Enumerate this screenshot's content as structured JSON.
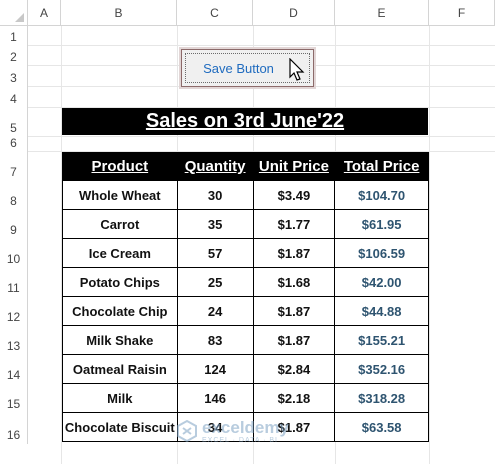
{
  "columns": [
    "A",
    "B",
    "C",
    "D",
    "E",
    "F"
  ],
  "rows": [
    "1",
    "2",
    "3",
    "4",
    "5",
    "6",
    "7",
    "8",
    "9",
    "10",
    "11",
    "12",
    "13",
    "14",
    "15",
    "16"
  ],
  "button": {
    "label": "Save Button"
  },
  "banner": {
    "title": "Sales on 3rd June'22"
  },
  "table": {
    "headers": [
      "Product",
      "Quantity",
      "Unit Price",
      "Total Price"
    ],
    "rows": [
      [
        "Whole Wheat",
        "30",
        "$3.49",
        "$104.70"
      ],
      [
        "Carrot",
        "35",
        "$1.77",
        "$61.95"
      ],
      [
        "Ice Cream",
        "57",
        "$1.87",
        "$106.59"
      ],
      [
        "Potato Chips",
        "25",
        "$1.68",
        "$42.00"
      ],
      [
        "Chocolate Chip",
        "24",
        "$1.87",
        "$44.88"
      ],
      [
        "Milk Shake",
        "83",
        "$1.87",
        "$155.21"
      ],
      [
        "Oatmeal Raisin",
        "124",
        "$2.84",
        "$352.16"
      ],
      [
        "Milk",
        "146",
        "$2.18",
        "$318.28"
      ],
      [
        "Chocolate Biscuit",
        "34",
        "$1.87",
        "$63.58"
      ]
    ]
  },
  "watermark": {
    "name": "exceldemy",
    "tagline": "EXCEL · DATA · BI"
  },
  "colors": {
    "total_text": "#2e5470",
    "button_text": "#1f6bbf",
    "banner_bg": "#000000"
  }
}
